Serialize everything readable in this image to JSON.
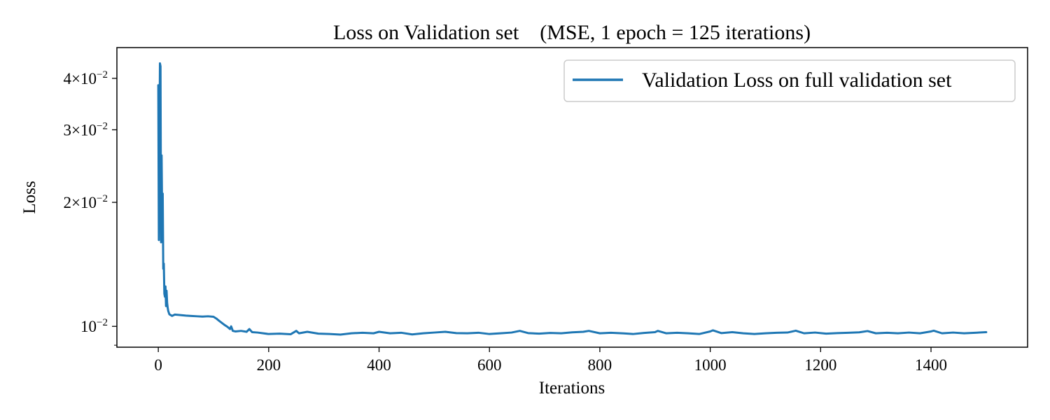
{
  "chart_data": {
    "type": "line",
    "title": "Loss on Validation set    (MSE, 1 epoch = 125 iterations)",
    "xlabel": "Iterations",
    "ylabel": "Loss",
    "xlim": [
      -75,
      1575
    ],
    "ylim": [
      0.0089,
      0.0475
    ],
    "y_scale": "log",
    "grid": false,
    "legend_position": "top-right",
    "x_ticks": [
      0,
      200,
      400,
      600,
      800,
      1000,
      1200,
      1400
    ],
    "x_tick_labels": [
      "0",
      "200",
      "400",
      "600",
      "800",
      "1000",
      "1200",
      "1400"
    ],
    "y_ticks": [
      {
        "value": 0.01,
        "mantissa": "",
        "exponent": "-2",
        "label": "10^-2"
      },
      {
        "value": 0.02,
        "mantissa": "2",
        "exponent": "-2",
        "label": "2×10^-2"
      },
      {
        "value": 0.03,
        "mantissa": "3",
        "exponent": "-2",
        "label": "3×10^-2"
      },
      {
        "value": 0.04,
        "mantissa": "4",
        "exponent": "-2",
        "label": "4×10^-2"
      }
    ],
    "y_minor_ticks": [
      0.009
    ],
    "series": [
      {
        "name": "Validation Loss on full validation set",
        "color": "#1f77b4",
        "points": [
          [
            0,
            0.0385
          ],
          [
            1,
            0.0162
          ],
          [
            2,
            0.027
          ],
          [
            3,
            0.0435
          ],
          [
            4,
            0.0428
          ],
          [
            5,
            0.016
          ],
          [
            6,
            0.026
          ],
          [
            7,
            0.0185
          ],
          [
            8,
            0.021
          ],
          [
            9,
            0.0138
          ],
          [
            10,
            0.0142
          ],
          [
            11,
            0.012
          ],
          [
            12,
            0.0118
          ],
          [
            13,
            0.0125
          ],
          [
            14,
            0.0112
          ],
          [
            15,
            0.0122
          ],
          [
            16,
            0.0114
          ],
          [
            17,
            0.0111
          ],
          [
            18,
            0.0109
          ],
          [
            20,
            0.0107
          ],
          [
            25,
            0.0106
          ],
          [
            30,
            0.01068
          ],
          [
            40,
            0.01065
          ],
          [
            50,
            0.01062
          ],
          [
            60,
            0.0106
          ],
          [
            70,
            0.01058
          ],
          [
            80,
            0.01056
          ],
          [
            90,
            0.01058
          ],
          [
            100,
            0.01055
          ],
          [
            105,
            0.01045
          ],
          [
            110,
            0.01032
          ],
          [
            115,
            0.0102
          ],
          [
            120,
            0.01008
          ],
          [
            125,
            0.00998
          ],
          [
            130,
            0.00985
          ],
          [
            132,
            0.01
          ],
          [
            135,
            0.00975
          ],
          [
            140,
            0.00972
          ],
          [
            150,
            0.00975
          ],
          [
            160,
            0.0097
          ],
          [
            165,
            0.00985
          ],
          [
            170,
            0.00968
          ],
          [
            180,
            0.00966
          ],
          [
            190,
            0.00962
          ],
          [
            200,
            0.00958
          ],
          [
            220,
            0.0096
          ],
          [
            240,
            0.00957
          ],
          [
            250,
            0.00975
          ],
          [
            255,
            0.00962
          ],
          [
            270,
            0.0097
          ],
          [
            290,
            0.0096
          ],
          [
            310,
            0.00958
          ],
          [
            330,
            0.00955
          ],
          [
            350,
            0.00962
          ],
          [
            370,
            0.00965
          ],
          [
            390,
            0.00962
          ],
          [
            400,
            0.0097
          ],
          [
            420,
            0.00962
          ],
          [
            440,
            0.00965
          ],
          [
            460,
            0.00956
          ],
          [
            480,
            0.00962
          ],
          [
            500,
            0.00966
          ],
          [
            520,
            0.0097
          ],
          [
            540,
            0.00963
          ],
          [
            560,
            0.00962
          ],
          [
            580,
            0.00965
          ],
          [
            600,
            0.00958
          ],
          [
            620,
            0.00962
          ],
          [
            640,
            0.00966
          ],
          [
            655,
            0.00975
          ],
          [
            670,
            0.00963
          ],
          [
            690,
            0.0096
          ],
          [
            710,
            0.00964
          ],
          [
            730,
            0.00962
          ],
          [
            750,
            0.00967
          ],
          [
            770,
            0.0097
          ],
          [
            780,
            0.00975
          ],
          [
            800,
            0.00962
          ],
          [
            820,
            0.00965
          ],
          [
            840,
            0.00962
          ],
          [
            860,
            0.00958
          ],
          [
            880,
            0.00964
          ],
          [
            900,
            0.00968
          ],
          [
            905,
            0.00975
          ],
          [
            920,
            0.00962
          ],
          [
            940,
            0.00965
          ],
          [
            960,
            0.00962
          ],
          [
            980,
            0.00958
          ],
          [
            1000,
            0.00972
          ],
          [
            1005,
            0.00978
          ],
          [
            1020,
            0.00963
          ],
          [
            1040,
            0.00968
          ],
          [
            1060,
            0.00962
          ],
          [
            1080,
            0.00958
          ],
          [
            1100,
            0.00962
          ],
          [
            1120,
            0.00965
          ],
          [
            1140,
            0.00966
          ],
          [
            1155,
            0.00976
          ],
          [
            1170,
            0.00962
          ],
          [
            1190,
            0.00966
          ],
          [
            1210,
            0.0096
          ],
          [
            1230,
            0.00963
          ],
          [
            1250,
            0.00965
          ],
          [
            1270,
            0.00967
          ],
          [
            1285,
            0.00974
          ],
          [
            1300,
            0.00962
          ],
          [
            1320,
            0.00965
          ],
          [
            1340,
            0.00962
          ],
          [
            1360,
            0.00966
          ],
          [
            1380,
            0.00962
          ],
          [
            1400,
            0.00972
          ],
          [
            1405,
            0.00976
          ],
          [
            1420,
            0.00962
          ],
          [
            1440,
            0.00966
          ],
          [
            1460,
            0.00962
          ],
          [
            1480,
            0.00965
          ],
          [
            1500,
            0.00968
          ]
        ]
      }
    ]
  }
}
